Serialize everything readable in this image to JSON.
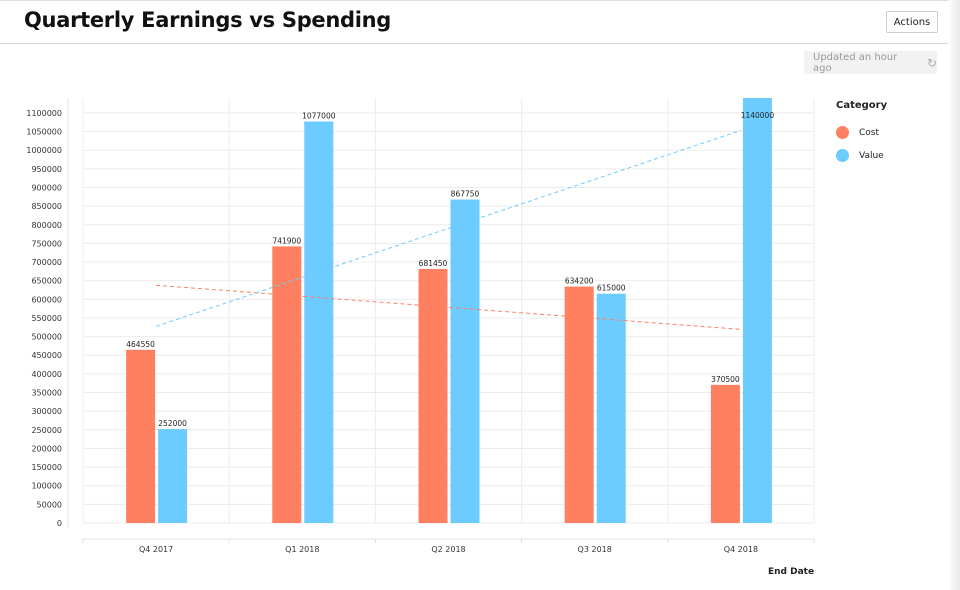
{
  "header": {
    "title": "Quarterly Earnings vs Spending",
    "actions_label": "Actions"
  },
  "status": {
    "updated_label": "Updated an hour ago",
    "refresh_icon": "refresh-icon"
  },
  "chart_data": {
    "type": "bar",
    "title": "Quarterly Earnings vs Spending",
    "xlabel": "End Date",
    "ylabel": "",
    "categories": [
      "Q4 2017",
      "Q1 2018",
      "Q2 2018",
      "Q3 2018",
      "Q4 2018"
    ],
    "series": [
      {
        "name": "Cost",
        "color": "#ff8060",
        "values": [
          464550,
          741900,
          681450,
          634200,
          370500
        ]
      },
      {
        "name": "Value",
        "color": "#6ccbff",
        "values": [
          252000,
          1077000,
          867750,
          615000,
          1140000
        ]
      }
    ],
    "trendlines": "linear, dashed, one per series",
    "ylim": [
      0,
      1140000
    ],
    "ytick_step": 50000,
    "yticks_max": 1100000,
    "grid": true,
    "legend": {
      "title": "Category",
      "placement": "right"
    }
  }
}
